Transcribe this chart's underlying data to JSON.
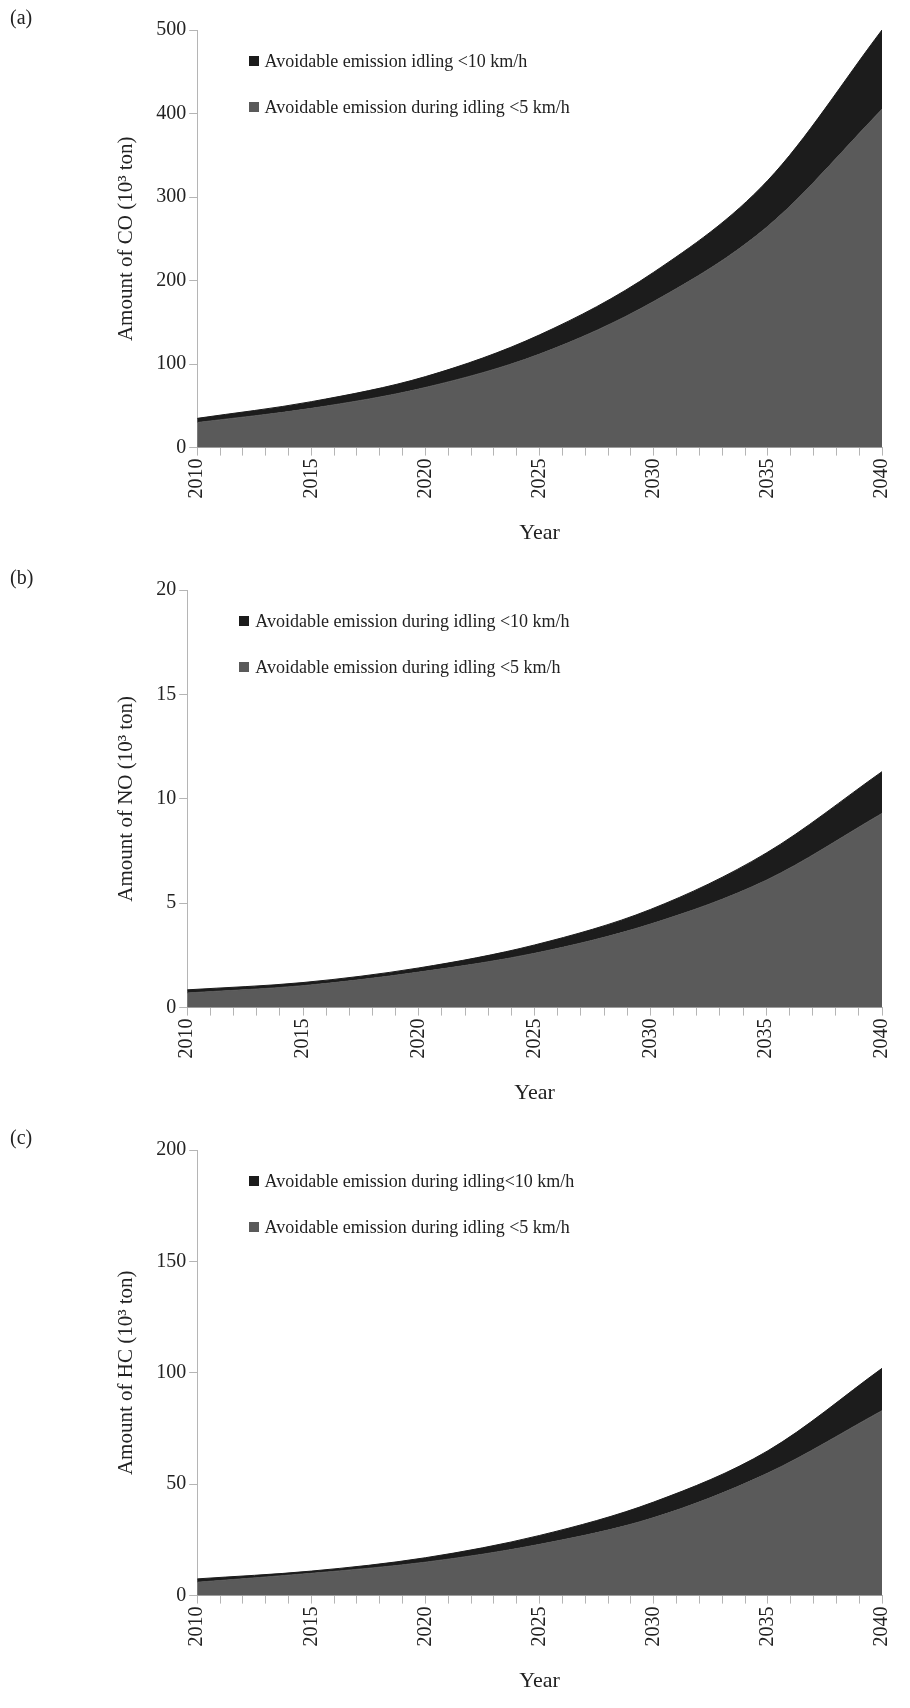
{
  "chart_data": [
    {
      "type": "area",
      "stacked": true,
      "annotations": [
        "(a)"
      ],
      "xlabel": "Year",
      "ylabel": "Amount of CO (10³ ton)",
      "legend": "top left",
      "x": [
        2010,
        2015,
        2020,
        2025,
        2030,
        2035,
        2040
      ],
      "series": [
        {
          "name": "Avoidable emission during idling <5 km/h",
          "color": "#5a5a5a",
          "values": [
            30,
            47,
            72,
            112,
            175,
            265,
            405
          ]
        },
        {
          "name": "Avoidable emission idling <10 km/h",
          "color": "#1c1c1c",
          "values": [
            5,
            8,
            13,
            23,
            35,
            55,
            95
          ]
        }
      ],
      "xlim": [
        2010,
        2040
      ],
      "xticks": [
        2010,
        {
          "value": 2011,
          "label": null
        },
        {
          "value": 2012,
          "label": null
        },
        {
          "value": 2013,
          "label": null
        },
        {
          "value": 2014,
          "label": null
        },
        2015,
        {
          "value": 2016,
          "label": null
        },
        {
          "value": 2017,
          "label": null
        },
        {
          "value": 2018,
          "label": null
        },
        {
          "value": 2019,
          "label": null
        },
        2020,
        {
          "value": 2021,
          "label": null
        },
        {
          "value": 2022,
          "label": null
        },
        {
          "value": 2023,
          "label": null
        },
        {
          "value": 2024,
          "label": null
        },
        2025,
        {
          "value": 2026,
          "label": null
        },
        {
          "value": 2027,
          "label": null
        },
        {
          "value": 2028,
          "label": null
        },
        {
          "value": 2029,
          "label": null
        },
        2030,
        {
          "value": 2031,
          "label": null
        },
        {
          "value": 2032,
          "label": null
        },
        {
          "value": 2033,
          "label": null
        },
        {
          "value": 2034,
          "label": null
        },
        2035,
        {
          "value": 2036,
          "label": null
        },
        {
          "value": 2037,
          "label": null
        },
        {
          "value": 2038,
          "label": null
        },
        {
          "value": 2039,
          "label": null
        },
        2040
      ],
      "ylim": [
        0,
        500
      ],
      "yticks": [
        0,
        100,
        200,
        300,
        400,
        500
      ]
    },
    {
      "type": "area",
      "stacked": true,
      "annotations": [
        "(b)"
      ],
      "xlabel": "Year",
      "ylabel": "Amount of NO (10³ ton)",
      "legend": "top left",
      "x": [
        2010,
        2015,
        2020,
        2025,
        2030,
        2035,
        2040
      ],
      "series": [
        {
          "name": "Avoidable emission during idling <5 km/h",
          "color": "#5a5a5a",
          "values": [
            0.7,
            1.05,
            1.7,
            2.6,
            4.0,
            6.1,
            9.3
          ]
        },
        {
          "name": "Avoidable emission during  idling <10 km/h",
          "color": "#1c1c1c",
          "values": [
            0.15,
            0.15,
            0.2,
            0.4,
            0.7,
            1.3,
            2.0
          ]
        }
      ],
      "xlim": [
        2010,
        2040
      ],
      "xticks": [
        2010,
        {
          "value": 2011,
          "label": null
        },
        {
          "value": 2012,
          "label": null
        },
        {
          "value": 2013,
          "label": null
        },
        {
          "value": 2014,
          "label": null
        },
        2015,
        {
          "value": 2016,
          "label": null
        },
        {
          "value": 2017,
          "label": null
        },
        {
          "value": 2018,
          "label": null
        },
        {
          "value": 2019,
          "label": null
        },
        2020,
        {
          "value": 2021,
          "label": null
        },
        {
          "value": 2022,
          "label": null
        },
        {
          "value": 2023,
          "label": null
        },
        {
          "value": 2024,
          "label": null
        },
        2025,
        {
          "value": 2026,
          "label": null
        },
        {
          "value": 2027,
          "label": null
        },
        {
          "value": 2028,
          "label": null
        },
        {
          "value": 2029,
          "label": null
        },
        2030,
        {
          "value": 2031,
          "label": null
        },
        {
          "value": 2032,
          "label": null
        },
        {
          "value": 2033,
          "label": null
        },
        {
          "value": 2034,
          "label": null
        },
        2035,
        {
          "value": 2036,
          "label": null
        },
        {
          "value": 2037,
          "label": null
        },
        {
          "value": 2038,
          "label": null
        },
        {
          "value": 2039,
          "label": null
        },
        2040
      ],
      "ylim": [
        0,
        20
      ],
      "yticks": [
        0,
        5,
        10,
        15,
        20
      ]
    },
    {
      "type": "area",
      "stacked": true,
      "annotations": [
        "(c)"
      ],
      "xlabel": "Year",
      "ylabel": "Amount of HC (10³ ton)",
      "legend": "top left",
      "x": [
        2010,
        2015,
        2020,
        2025,
        2030,
        2035,
        2040
      ],
      "series": [
        {
          "name": "Avoidable emission during idling <5 km/h",
          "color": "#5a5a5a",
          "values": [
            6,
            10,
            15,
            23,
            35,
            55,
            83
          ]
        },
        {
          "name": "Avoidable emission during idling<10 km/h",
          "color": "#1c1c1c",
          "values": [
            1.5,
            1,
            2,
            4,
            7,
            10,
            19
          ]
        }
      ],
      "xlim": [
        2010,
        2040
      ],
      "xticks": [
        2010,
        {
          "value": 2011,
          "label": null
        },
        {
          "value": 2012,
          "label": null
        },
        {
          "value": 2013,
          "label": null
        },
        {
          "value": 2014,
          "label": null
        },
        2015,
        {
          "value": 2016,
          "label": null
        },
        {
          "value": 2017,
          "label": null
        },
        {
          "value": 2018,
          "label": null
        },
        {
          "value": 2019,
          "label": null
        },
        2020,
        {
          "value": 2021,
          "label": null
        },
        {
          "value": 2022,
          "label": null
        },
        {
          "value": 2023,
          "label": null
        },
        {
          "value": 2024,
          "label": null
        },
        2025,
        {
          "value": 2026,
          "label": null
        },
        {
          "value": 2027,
          "label": null
        },
        {
          "value": 2028,
          "label": null
        },
        {
          "value": 2029,
          "label": null
        },
        2030,
        {
          "value": 2031,
          "label": null
        },
        {
          "value": 2032,
          "label": null
        },
        {
          "value": 2033,
          "label": null
        },
        {
          "value": 2034,
          "label": null
        },
        2035,
        {
          "value": 2036,
          "label": null
        },
        {
          "value": 2037,
          "label": null
        },
        {
          "value": 2038,
          "label": null
        },
        {
          "value": 2039,
          "label": null
        },
        2040
      ],
      "ylim": [
        0,
        200
      ],
      "yticks": [
        0,
        50,
        100,
        150,
        200
      ]
    }
  ]
}
